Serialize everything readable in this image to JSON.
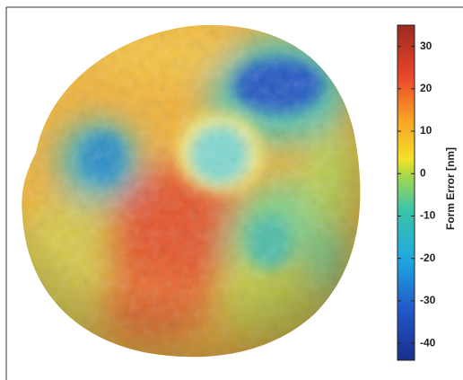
{
  "chart_data": {
    "type": "colorbar",
    "colorbar_label": "Form Error  [nm]",
    "ylim": [
      -44,
      35
    ],
    "yticks": [
      30,
      20,
      10,
      0,
      -10,
      -20,
      -30,
      -40
    ]
  }
}
